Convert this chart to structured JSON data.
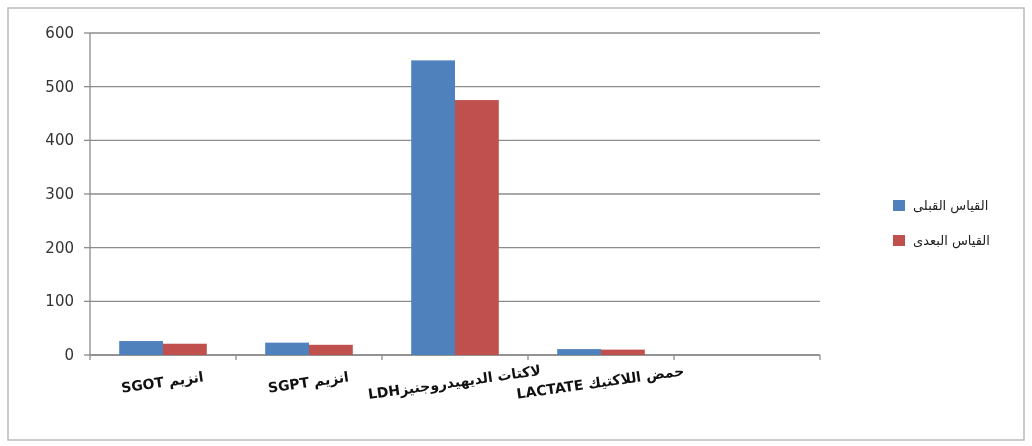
{
  "chart_data": {
    "type": "bar",
    "categories": [
      "انزيم SGOT",
      "انزيم SGPT",
      "لاكتات الديهيدروجنيزLDH",
      "حمض اللاكتيك LACTATE",
      null
    ],
    "series": [
      {
        "name": "القياس القبلى",
        "color": "#4f81bd",
        "values": [
          26,
          23,
          549,
          11,
          null
        ]
      },
      {
        "name": "القياس البعدى",
        "color": "#c0504d",
        "values": [
          21,
          19,
          475,
          10,
          null
        ]
      }
    ],
    "ylim": [
      0,
      600
    ],
    "yticks": [
      0,
      100,
      200,
      300,
      400,
      500,
      600
    ],
    "grid": "y",
    "legend": "right"
  }
}
